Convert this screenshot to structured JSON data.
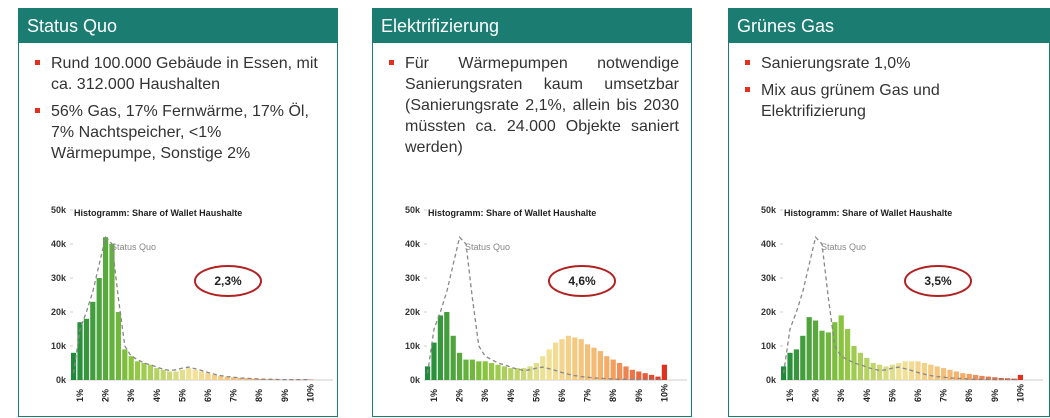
{
  "panels": [
    {
      "title": "Status Quo",
      "bullets": [
        "Rund 100.000 Gebäude in Essen, mit ca. 312.000 Haushalten",
        "56% Gas, 17% Fernwärme, 17% Öl, 7% Nachtspeicher, <1% Wärmepumpe, Sonstige 2%"
      ]
    },
    {
      "title": "Elektrifizierung",
      "bullets": [
        "Für Wärmepumpen notwendige Sanierungsraten kaum umsetzbar (Sanierungsrate 2,1%, allein bis 2030 müssten ca. 24.000 Objekte saniert werden)"
      ]
    },
    {
      "title": "Grünes Gas",
      "bullets": [
        "Sanierungsrate 1,0%",
        "Mix aus grünem Gas und Elektrifizierung"
      ]
    }
  ],
  "chart_data": [
    {
      "type": "bar",
      "title": "Histogramm: Share of Wallet Haushalte",
      "badge": "2,3%",
      "categories": [
        null,
        "1%",
        null,
        null,
        null,
        "2%",
        null,
        null,
        null,
        "3%",
        null,
        null,
        null,
        "4%",
        null,
        null,
        null,
        "5%",
        null,
        null,
        null,
        "6%",
        null,
        null,
        null,
        "7%",
        null,
        null,
        null,
        "8%",
        null,
        null,
        null,
        "9%",
        null,
        null,
        null,
        "10%"
      ],
      "series": [
        {
          "color_scale": [
            "#1e8a3a",
            "#8cc63f",
            "#f3e39a",
            "#f5b06a",
            "#e0301e"
          ],
          "values": [
            8000,
            17000,
            18000,
            23000,
            30000,
            42000,
            40000,
            20000,
            9000,
            7000,
            5500,
            5000,
            4500,
            3500,
            3000,
            2500,
            2500,
            3000,
            3500,
            3000,
            2500,
            2000,
            1500,
            1200,
            1000,
            800,
            600,
            500,
            400,
            300,
            200,
            200,
            150,
            100,
            100,
            100,
            100,
            100
          ]
        },
        {
          "name": "Status Quo",
          "color": "#888888",
          "dashed": true,
          "values": [
            2000,
            15000,
            20000,
            26000,
            34000,
            42000,
            40000,
            24000,
            10000,
            7000,
            6000,
            5000,
            4500,
            3800,
            3200,
            2800,
            3000,
            3500,
            3800,
            3300,
            2800,
            2200,
            1700,
            1300,
            1000,
            800,
            600,
            500,
            400,
            300,
            200,
            200,
            150,
            100,
            100,
            100,
            100,
            100
          ]
        }
      ],
      "ylim": [
        0,
        50000
      ],
      "yticks": [
        {
          "value": 0,
          "label": "0k"
        },
        {
          "value": 10000,
          "label": "10k"
        },
        {
          "value": 20000,
          "label": "20k"
        },
        {
          "value": 30000,
          "label": "30k"
        },
        {
          "value": 40000,
          "label": "40k"
        },
        {
          "value": 50000,
          "label": "50k"
        }
      ]
    },
    {
      "type": "bar",
      "title": "Histogramm: Share of Wallet Haushalte",
      "badge": "4,6%",
      "categories": [
        null,
        "1%",
        null,
        null,
        null,
        "2%",
        null,
        null,
        null,
        "3%",
        null,
        null,
        null,
        "4%",
        null,
        null,
        null,
        "5%",
        null,
        null,
        null,
        "6%",
        null,
        null,
        null,
        "7%",
        null,
        null,
        null,
        "8%",
        null,
        null,
        null,
        "9%",
        null,
        null,
        null,
        "10%"
      ],
      "series": [
        {
          "color_scale": [
            "#1e8a3a",
            "#8cc63f",
            "#f3e39a",
            "#f5b06a",
            "#e0301e"
          ],
          "values": [
            4000,
            11000,
            19000,
            20000,
            13000,
            8000,
            6000,
            6000,
            5500,
            5500,
            5000,
            4500,
            4000,
            3500,
            3500,
            3500,
            4000,
            5000,
            7000,
            9000,
            11000,
            12000,
            13000,
            12500,
            12000,
            10500,
            9500,
            8500,
            7000,
            6000,
            5000,
            4000,
            3000,
            2500,
            2000,
            1500,
            1000,
            4500
          ]
        },
        {
          "name": "Status Quo",
          "color": "#888888",
          "dashed": true,
          "values": [
            2000,
            15000,
            20000,
            26000,
            34000,
            42000,
            40000,
            24000,
            10000,
            7000,
            6000,
            5000,
            4500,
            3800,
            3200,
            2800,
            3000,
            3500,
            3800,
            3300,
            2800,
            2200,
            1700,
            1300,
            1000,
            800,
            600,
            500,
            400,
            300,
            200,
            200,
            150,
            100,
            100,
            100,
            100,
            100
          ]
        }
      ],
      "ylim": [
        0,
        50000
      ],
      "yticks": [
        {
          "value": 0,
          "label": "0k"
        },
        {
          "value": 10000,
          "label": "10k"
        },
        {
          "value": 20000,
          "label": "20k"
        },
        {
          "value": 30000,
          "label": "30k"
        },
        {
          "value": 40000,
          "label": "40k"
        },
        {
          "value": 50000,
          "label": "50k"
        }
      ]
    },
    {
      "type": "bar",
      "title": "Histogramm: Share of Wallet Haushalte",
      "badge": "3,5%",
      "categories": [
        null,
        "1%",
        null,
        null,
        null,
        "2%",
        null,
        null,
        null,
        "3%",
        null,
        null,
        null,
        "4%",
        null,
        null,
        null,
        "5%",
        null,
        null,
        null,
        "6%",
        null,
        null,
        null,
        "7%",
        null,
        null,
        null,
        "8%",
        null,
        null,
        null,
        "9%",
        null,
        null,
        null,
        "10%"
      ],
      "series": [
        {
          "color_scale": [
            "#1e8a3a",
            "#8cc63f",
            "#f3e39a",
            "#f5b06a",
            "#e0301e"
          ],
          "values": [
            4000,
            8000,
            9000,
            13000,
            18500,
            17500,
            14500,
            14000,
            17000,
            19000,
            15000,
            10000,
            8000,
            6500,
            5000,
            4500,
            4000,
            4500,
            5000,
            5500,
            5500,
            5500,
            5000,
            4500,
            4000,
            3500,
            3000,
            2500,
            2000,
            1800,
            1500,
            1200,
            1000,
            800,
            600,
            500,
            400,
            1500
          ]
        },
        {
          "name": "Status Quo",
          "color": "#888888",
          "dashed": true,
          "values": [
            2000,
            15000,
            20000,
            26000,
            34000,
            42000,
            40000,
            24000,
            10000,
            7000,
            6000,
            5000,
            4500,
            3800,
            3200,
            2800,
            3000,
            3500,
            3800,
            3300,
            2800,
            2200,
            1700,
            1300,
            1000,
            800,
            600,
            500,
            400,
            300,
            200,
            200,
            150,
            100,
            100,
            100,
            100,
            100
          ]
        }
      ],
      "ylim": [
        0,
        50000
      ],
      "yticks": [
        {
          "value": 0,
          "label": "0k"
        },
        {
          "value": 10000,
          "label": "10k"
        },
        {
          "value": 20000,
          "label": "20k"
        },
        {
          "value": 30000,
          "label": "30k"
        },
        {
          "value": 40000,
          "label": "40k"
        },
        {
          "value": 50000,
          "label": "50k"
        }
      ]
    }
  ]
}
